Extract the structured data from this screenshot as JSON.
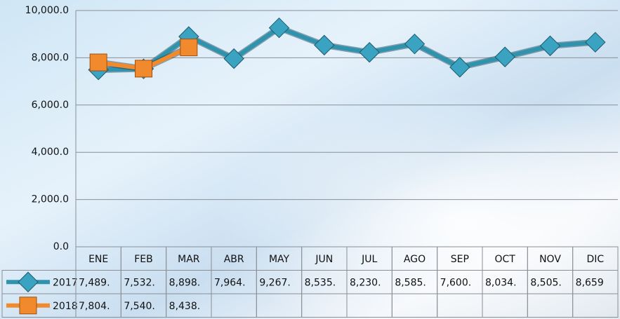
{
  "chart_data": {
    "type": "line",
    "categories": [
      "ENE",
      "FEB",
      "MAR",
      "ABR",
      "MAY",
      "JUN",
      "JUL",
      "AGO",
      "SEP",
      "OCT",
      "NOV",
      "DIC"
    ],
    "series": [
      {
        "name": "2017",
        "color": "#2f93ad",
        "marker": "diamond",
        "values": [
          7489,
          7532,
          8898,
          7964,
          9267,
          8535,
          8230,
          8585,
          7600,
          8034,
          8505,
          8659
        ],
        "value_labels": [
          "7,489.",
          "7,532.",
          "8,898.",
          "7,964.",
          "9,267.",
          "8,535.",
          "8,230.",
          "8,585.",
          "7,600.",
          "8,034.",
          "8,505.",
          "8,659"
        ]
      },
      {
        "name": "2018",
        "color": "#f08a2c",
        "marker": "square",
        "values": [
          7804,
          7540,
          8438,
          null,
          null,
          null,
          null,
          null,
          null,
          null,
          null,
          null
        ],
        "value_labels": [
          "7,804.",
          "7,540.",
          "8,438.",
          null,
          null,
          null,
          null,
          null,
          null,
          null,
          null,
          null
        ]
      }
    ],
    "ylim": [
      0,
      10000
    ],
    "yticks": [
      {
        "value": 0,
        "label": "0.0"
      },
      {
        "value": 2000,
        "label": "2,000.0"
      },
      {
        "value": 4000,
        "label": "4,000.0"
      },
      {
        "value": 6000,
        "label": "6,000.0"
      },
      {
        "value": 8000,
        "label": "8,000.0"
      },
      {
        "value": 10000,
        "label": "10,000.0"
      }
    ],
    "grid": true,
    "data_table": true
  }
}
